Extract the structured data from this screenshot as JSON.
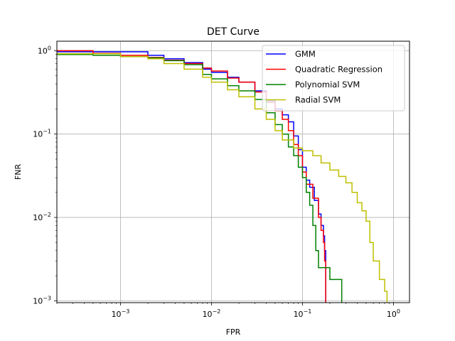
{
  "chart_data": {
    "type": "line",
    "title": "DET Curve",
    "xlabel": "FPR",
    "ylabel": "FNR",
    "xscale": "log",
    "yscale": "log",
    "xlim": [
      0.0002,
      1.5
    ],
    "ylim": [
      0.00095,
      1.3
    ],
    "grid": true,
    "legend_position": "upper right",
    "x_ticks": [
      {
        "value": 0.001,
        "base": "10",
        "exp": "−3"
      },
      {
        "value": 0.01,
        "base": "10",
        "exp": "−2"
      },
      {
        "value": 0.1,
        "base": "10",
        "exp": "−1"
      },
      {
        "value": 1,
        "base": "10",
        "exp": "0"
      }
    ],
    "y_ticks": [
      {
        "value": 1,
        "base": "10",
        "exp": "0"
      },
      {
        "value": 0.1,
        "base": "10",
        "exp": "−1"
      },
      {
        "value": 0.01,
        "base": "10",
        "exp": "−2"
      },
      {
        "value": 0.001,
        "base": "10",
        "exp": "−3"
      }
    ],
    "series": [
      {
        "name": "GMM",
        "color": "#0000ff",
        "points": [
          [
            0.0002,
            0.97
          ],
          [
            0.002,
            0.95
          ],
          [
            0.002,
            0.88
          ],
          [
            0.003,
            0.8
          ],
          [
            0.005,
            0.72
          ],
          [
            0.008,
            0.6
          ],
          [
            0.01,
            0.55
          ],
          [
            0.015,
            0.48
          ],
          [
            0.02,
            0.42
          ],
          [
            0.03,
            0.33
          ],
          [
            0.04,
            0.25
          ],
          [
            0.05,
            0.2
          ],
          [
            0.06,
            0.17
          ],
          [
            0.07,
            0.14
          ],
          [
            0.08,
            0.095
          ],
          [
            0.09,
            0.065
          ],
          [
            0.1,
            0.04
          ],
          [
            0.11,
            0.028
          ],
          [
            0.12,
            0.023
          ],
          [
            0.135,
            0.016
          ],
          [
            0.15,
            0.011
          ],
          [
            0.16,
            0.008
          ],
          [
            0.17,
            0.006
          ],
          [
            0.175,
            0.004
          ],
          [
            0.18,
            0.002
          ],
          [
            0.18,
            0.00095
          ]
        ]
      },
      {
        "name": "Quadratic Regression",
        "color": "#ff0000",
        "points": [
          [
            0.0002,
            1.0
          ],
          [
            0.0005,
            0.93
          ],
          [
            0.001,
            0.88
          ],
          [
            0.002,
            0.83
          ],
          [
            0.003,
            0.77
          ],
          [
            0.005,
            0.7
          ],
          [
            0.008,
            0.62
          ],
          [
            0.01,
            0.57
          ],
          [
            0.015,
            0.47
          ],
          [
            0.02,
            0.42
          ],
          [
            0.03,
            0.32
          ],
          [
            0.04,
            0.24
          ],
          [
            0.05,
            0.19
          ],
          [
            0.06,
            0.15
          ],
          [
            0.07,
            0.11
          ],
          [
            0.08,
            0.075
          ],
          [
            0.09,
            0.055
          ],
          [
            0.1,
            0.035
          ],
          [
            0.11,
            0.025
          ],
          [
            0.13,
            0.017
          ],
          [
            0.15,
            0.01
          ],
          [
            0.16,
            0.007
          ],
          [
            0.17,
            0.005
          ],
          [
            0.175,
            0.003
          ],
          [
            0.18,
            0.0015
          ],
          [
            0.18,
            0.00095
          ]
        ]
      },
      {
        "name": "Polynomial SVM",
        "color": "#008000",
        "points": [
          [
            0.0002,
            0.9
          ],
          [
            0.0005,
            0.88
          ],
          [
            0.001,
            0.85
          ],
          [
            0.002,
            0.82
          ],
          [
            0.003,
            0.76
          ],
          [
            0.005,
            0.68
          ],
          [
            0.008,
            0.52
          ],
          [
            0.01,
            0.46
          ],
          [
            0.015,
            0.38
          ],
          [
            0.02,
            0.33
          ],
          [
            0.03,
            0.26
          ],
          [
            0.04,
            0.18
          ],
          [
            0.05,
            0.13
          ],
          [
            0.06,
            0.1
          ],
          [
            0.07,
            0.07
          ],
          [
            0.08,
            0.055
          ],
          [
            0.09,
            0.04
          ],
          [
            0.1,
            0.03
          ],
          [
            0.11,
            0.02
          ],
          [
            0.12,
            0.014
          ],
          [
            0.13,
            0.008
          ],
          [
            0.14,
            0.004
          ],
          [
            0.15,
            0.0025
          ],
          [
            0.2,
            0.0018
          ],
          [
            0.27,
            0.0012
          ],
          [
            0.27,
            0.00095
          ]
        ]
      },
      {
        "name": "Radial SVM",
        "color": "#bfbf00",
        "points": [
          [
            0.0002,
            0.92
          ],
          [
            0.001,
            0.85
          ],
          [
            0.002,
            0.8
          ],
          [
            0.003,
            0.7
          ],
          [
            0.005,
            0.6
          ],
          [
            0.008,
            0.48
          ],
          [
            0.01,
            0.42
          ],
          [
            0.015,
            0.34
          ],
          [
            0.02,
            0.28
          ],
          [
            0.03,
            0.2
          ],
          [
            0.04,
            0.15
          ],
          [
            0.05,
            0.11
          ],
          [
            0.06,
            0.085
          ],
          [
            0.08,
            0.068
          ],
          [
            0.1,
            0.063
          ],
          [
            0.13,
            0.055
          ],
          [
            0.16,
            0.045
          ],
          [
            0.2,
            0.037
          ],
          [
            0.25,
            0.031
          ],
          [
            0.3,
            0.026
          ],
          [
            0.35,
            0.02
          ],
          [
            0.4,
            0.015
          ],
          [
            0.45,
            0.012
          ],
          [
            0.5,
            0.009
          ],
          [
            0.55,
            0.005
          ],
          [
            0.6,
            0.003
          ],
          [
            0.7,
            0.0018
          ],
          [
            0.8,
            0.0013
          ],
          [
            0.85,
            0.0012
          ],
          [
            0.85,
            0.00095
          ]
        ]
      }
    ]
  }
}
